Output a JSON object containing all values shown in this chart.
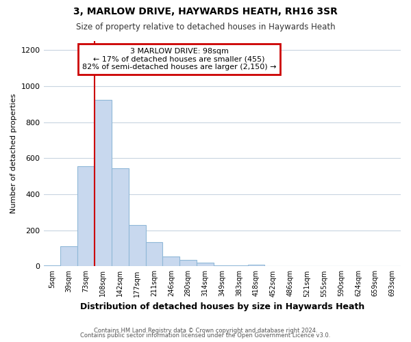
{
  "title1": "3, MARLOW DRIVE, HAYWARDS HEATH, RH16 3SR",
  "title2": "Size of property relative to detached houses in Haywards Heath",
  "xlabel": "Distribution of detached houses by size in Haywards Heath",
  "ylabel": "Number of detached properties",
  "categories": [
    "5sqm",
    "39sqm",
    "73sqm",
    "108sqm",
    "142sqm",
    "177sqm",
    "211sqm",
    "246sqm",
    "280sqm",
    "314sqm",
    "349sqm",
    "383sqm",
    "418sqm",
    "452sqm",
    "486sqm",
    "521sqm",
    "555sqm",
    "590sqm",
    "624sqm",
    "659sqm",
    "693sqm"
  ],
  "values": [
    5,
    110,
    555,
    925,
    545,
    230,
    135,
    55,
    35,
    20,
    5,
    5,
    10,
    0,
    0,
    0,
    0,
    0,
    0,
    0,
    0
  ],
  "bar_color": "#c8d8ee",
  "bar_edge_color": "#90b8d8",
  "grid_color": "#c8d4e0",
  "red_line_x": 2.5,
  "annotation_text": "3 MARLOW DRIVE: 98sqm\n← 17% of detached houses are smaller (455)\n82% of semi-detached houses are larger (2,150) →",
  "annotation_box_color": "#ffffff",
  "annotation_box_edge": "#cc0000",
  "ylim": [
    0,
    1250
  ],
  "yticks": [
    0,
    200,
    400,
    600,
    800,
    1000,
    1200
  ],
  "footer1": "Contains HM Land Registry data © Crown copyright and database right 2024.",
  "footer2": "Contains public sector information licensed under the Open Government Licence v3.0.",
  "bg_color": "#ffffff"
}
